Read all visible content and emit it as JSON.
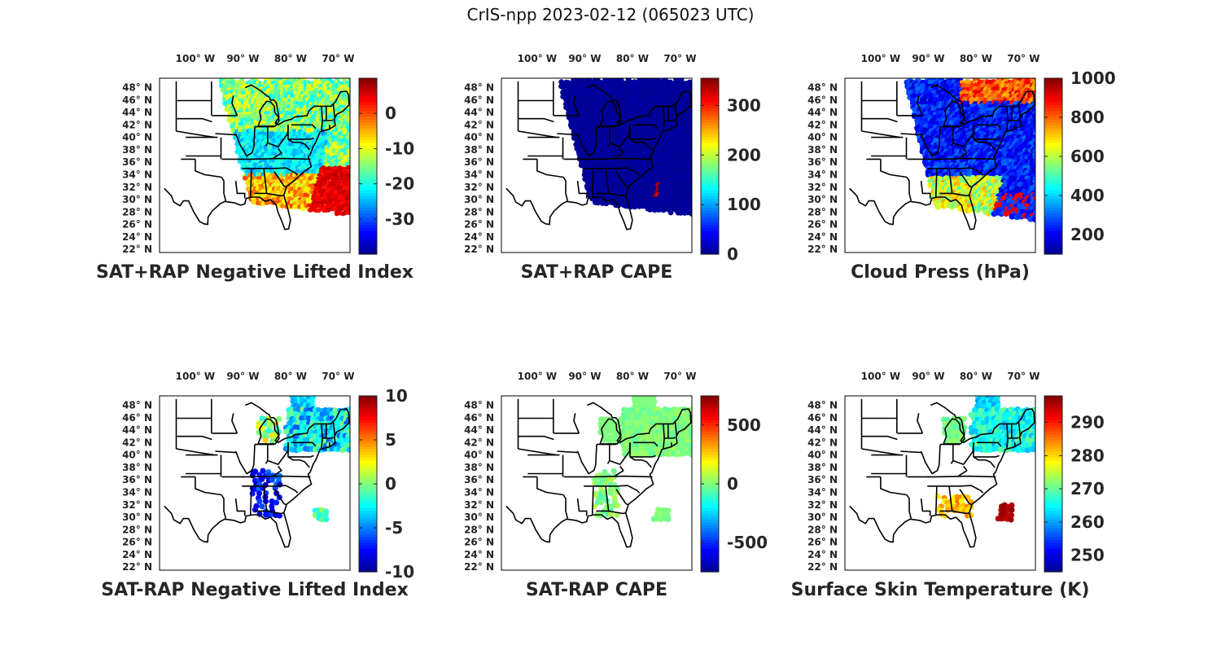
{
  "figure_title": "CrIS-npp 2023-02-12 (065023 UTC)",
  "colormap": [
    "#00008f",
    "#0000ff",
    "#0080ff",
    "#00ffff",
    "#80ff80",
    "#ffff00",
    "#ff8000",
    "#ff0000",
    "#800000"
  ],
  "chart_data": [
    {
      "type": "heatmap",
      "title": "SAT+RAP Negative Lifted Index",
      "lon_ticks": [
        "100° W",
        "90° W",
        "80° W",
        "70° W"
      ],
      "lat_ticks": [
        "48° N",
        "46° N",
        "44° N",
        "42° N",
        "40° N",
        "38° N",
        "36° N",
        "34° N",
        "32° N",
        "30° N",
        "28° N",
        "26° N",
        "24° N",
        "22° N"
      ],
      "colorbar": {
        "min": -40,
        "max": 10,
        "ticks": [
          0,
          -10,
          -20,
          -30
        ]
      },
      "regions": [
        {
          "name": "swath",
          "value": -22
        },
        {
          "name": "northeast",
          "value": -15
        },
        {
          "name": "atlantic-south",
          "value": 5
        },
        {
          "name": "gulf-coast",
          "value": -5
        }
      ]
    },
    {
      "type": "heatmap",
      "title": "SAT+RAP CAPE",
      "lon_ticks": [
        "100° W",
        "90° W",
        "80° W",
        "70° W"
      ],
      "lat_ticks": [
        "48° N",
        "46° N",
        "44° N",
        "42° N",
        "40° N",
        "38° N",
        "36° N",
        "34° N",
        "32° N",
        "30° N",
        "28° N",
        "26° N",
        "24° N",
        "22° N"
      ],
      "colorbar": {
        "min": 0,
        "max": 355,
        "ticks": [
          300,
          200,
          100,
          0
        ]
      },
      "regions": [
        {
          "name": "swath",
          "value": 0
        },
        {
          "name": "atlantic-south",
          "value": 330
        }
      ]
    },
    {
      "type": "heatmap",
      "title": "Cloud Press (hPa)",
      "lon_ticks": [
        "100° W",
        "90° W",
        "80° W",
        "70° W"
      ],
      "lat_ticks": [
        "48° N",
        "46° N",
        "44° N",
        "42° N",
        "40° N",
        "38° N",
        "36° N",
        "34° N",
        "32° N",
        "30° N",
        "28° N",
        "26° N",
        "24° N",
        "22° N"
      ],
      "colorbar": {
        "min": 100,
        "max": 1000,
        "ticks": [
          1000,
          800,
          600,
          400,
          200
        ]
      },
      "regions": [
        {
          "name": "swath",
          "value": 200
        },
        {
          "name": "north",
          "value": 820
        },
        {
          "name": "southeast",
          "value": 620
        }
      ]
    },
    {
      "type": "heatmap",
      "title": "SAT-RAP Negative Lifted Index",
      "lon_ticks": [
        "100° W",
        "90° W",
        "80° W",
        "70° W"
      ],
      "lat_ticks": [
        "48° N",
        "46° N",
        "44° N",
        "42° N",
        "40° N",
        "38° N",
        "36° N",
        "34° N",
        "32° N",
        "30° N",
        "28° N",
        "26° N",
        "24° N",
        "22° N"
      ],
      "colorbar": {
        "min": -10,
        "max": 10,
        "ticks": [
          10,
          5,
          0,
          -5,
          -10
        ]
      },
      "regions": [
        {
          "name": "northeast",
          "value": -3
        },
        {
          "name": "great-lakes",
          "value": 1
        },
        {
          "name": "southeast",
          "value": -7
        },
        {
          "name": "atlantic-south",
          "value": -1
        }
      ]
    },
    {
      "type": "heatmap",
      "title": "SAT-RAP CAPE",
      "lon_ticks": [
        "100° W",
        "90° W",
        "80° W",
        "70° W"
      ],
      "lat_ticks": [
        "48° N",
        "46° N",
        "44° N",
        "42° N",
        "40° N",
        "38° N",
        "36° N",
        "34° N",
        "32° N",
        "30° N",
        "28° N",
        "26° N",
        "24° N",
        "22° N"
      ],
      "colorbar": {
        "min": -750,
        "max": 750,
        "ticks": [
          500,
          0,
          -500
        ]
      },
      "regions": [
        {
          "name": "northeast",
          "value": 0
        },
        {
          "name": "southeast",
          "value": 0
        },
        {
          "name": "atlantic-south",
          "value": 0
        }
      ]
    },
    {
      "type": "heatmap",
      "title": "Surface Skin Temperature (K)",
      "lon_ticks": [
        "100° W",
        "90° W",
        "80° W",
        "70° W"
      ],
      "lat_ticks": [
        "48° N",
        "46° N",
        "44° N",
        "42° N",
        "40° N",
        "38° N",
        "36° N",
        "34° N",
        "32° N",
        "30° N",
        "28° N",
        "26° N",
        "24° N",
        "22° N"
      ],
      "colorbar": {
        "min": 245,
        "max": 298,
        "ticks": [
          290,
          280,
          270,
          260,
          250
        ]
      },
      "regions": [
        {
          "name": "north",
          "value": 262
        },
        {
          "name": "great-lakes",
          "value": 271
        },
        {
          "name": "southeast",
          "value": 282
        },
        {
          "name": "atlantic-south",
          "value": 296
        }
      ]
    }
  ]
}
